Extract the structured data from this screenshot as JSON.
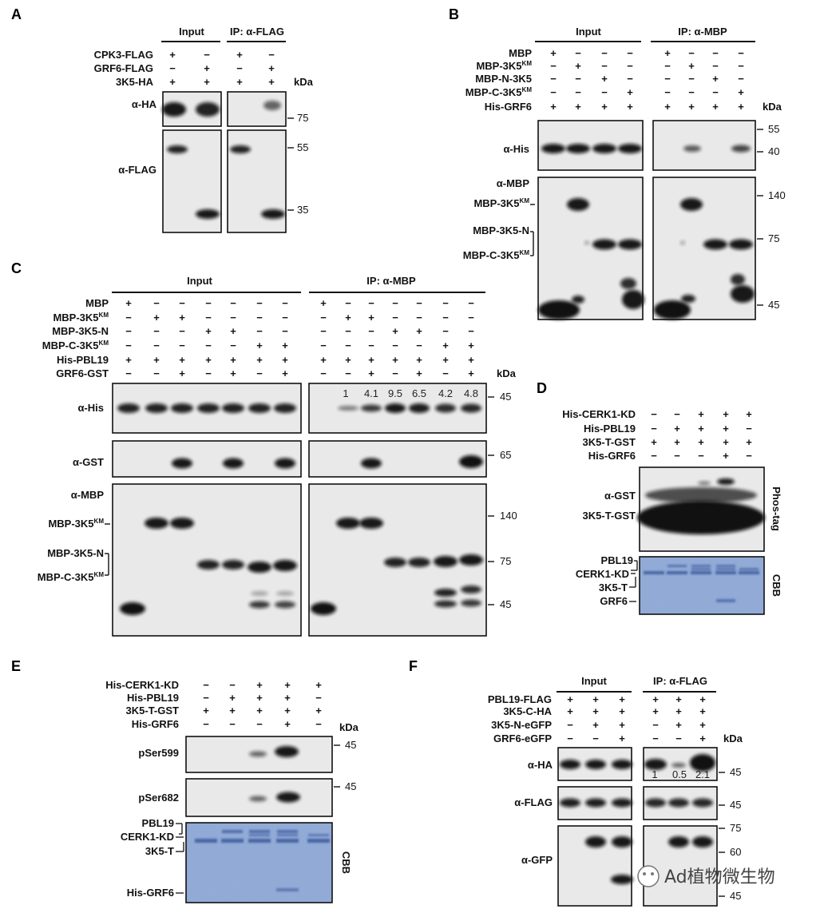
{
  "panels": {
    "A": {
      "letter": "A",
      "groups": [
        "Input",
        "IP: α-FLAG"
      ],
      "rows": [
        {
          "label": "CPK3-FLAG",
          "signs": [
            "+",
            "−",
            "+",
            "−"
          ]
        },
        {
          "label": "GRF6-FLAG",
          "signs": [
            "−",
            "+",
            "−",
            "+"
          ]
        },
        {
          "label": "3K5-HA",
          "signs": [
            "+",
            "+",
            "+",
            "+"
          ]
        }
      ],
      "kda": "kDa",
      "blots": [
        "α-HA",
        "α-FLAG"
      ],
      "markers": [
        "75",
        "55",
        "35"
      ]
    },
    "B": {
      "letter": "B",
      "groups": [
        "Input",
        "IP: α-MBP"
      ],
      "rows": [
        {
          "label": "MBP",
          "signs": [
            "+",
            "−",
            "−",
            "−",
            "+",
            "−",
            "−",
            "−"
          ]
        },
        {
          "label": "MBP-3K5KM",
          "signs": [
            "−",
            "+",
            "−",
            "−",
            "−",
            "+",
            "−",
            "−"
          ]
        },
        {
          "label": "MBP-N-3K5",
          "signs": [
            "−",
            "−",
            "+",
            "−",
            "−",
            "−",
            "+",
            "−"
          ]
        },
        {
          "label": "MBP-C-3K5KM",
          "signs": [
            "−",
            "−",
            "−",
            "+",
            "−",
            "−",
            "−",
            "+"
          ]
        },
        {
          "label": "His-GRF6",
          "signs": [
            "+",
            "+",
            "+",
            "+",
            "+",
            "+",
            "+",
            "+"
          ]
        }
      ],
      "kda": "kDa",
      "blots": [
        "α-His",
        "α-MBP"
      ],
      "band_labels": [
        "MBP-3K5KM",
        "MBP-3K5-N",
        "MBP-C-3K5KM"
      ],
      "markers": [
        "55",
        "40",
        "140",
        "75",
        "45"
      ]
    },
    "C": {
      "letter": "C",
      "groups": [
        "Input",
        "IP: α-MBP"
      ],
      "rows": [
        {
          "label": "MBP",
          "signs": [
            "+",
            "−",
            "−",
            "−",
            "−",
            "−",
            "−",
            "+",
            "−",
            "−",
            "−",
            "−",
            "−",
            "−"
          ]
        },
        {
          "label": "MBP-3K5KM",
          "signs": [
            "−",
            "+",
            "+",
            "−",
            "−",
            "−",
            "−",
            "−",
            "+",
            "+",
            "−",
            "−",
            "−",
            "−"
          ]
        },
        {
          "label": "MBP-3K5-N",
          "signs": [
            "−",
            "−",
            "−",
            "+",
            "+",
            "−",
            "−",
            "−",
            "−",
            "−",
            "+",
            "+",
            "−",
            "−"
          ]
        },
        {
          "label": "MBP-C-3K5KM",
          "signs": [
            "−",
            "−",
            "−",
            "−",
            "−",
            "+",
            "+",
            "−",
            "−",
            "−",
            "−",
            "−",
            "+",
            "+"
          ]
        },
        {
          "label": "His-PBL19",
          "signs": [
            "+",
            "+",
            "+",
            "+",
            "+",
            "+",
            "+",
            "+",
            "+",
            "+",
            "+",
            "+",
            "+",
            "+"
          ]
        },
        {
          "label": "GRF6-GST",
          "signs": [
            "−",
            "−",
            "+",
            "−",
            "+",
            "−",
            "+",
            "−",
            "−",
            "+",
            "−",
            "+",
            "−",
            "+"
          ]
        }
      ],
      "kda": "kDa",
      "blots": [
        "α-His",
        "α-GST",
        "α-MBP"
      ],
      "quant": [
        "1",
        "4.1",
        "9.5",
        "6.5",
        "4.2",
        "4.8"
      ],
      "band_labels": [
        "MBP-3K5KM",
        "MBP-3K5-N",
        "MBP-C-3K5KM"
      ],
      "markers": [
        "45",
        "65",
        "140",
        "75",
        "45"
      ]
    },
    "D": {
      "letter": "D",
      "rows": [
        {
          "label": "His-CERK1-KD",
          "signs": [
            "−",
            "−",
            "+",
            "+",
            "+"
          ]
        },
        {
          "label": "His-PBL19",
          "signs": [
            "−",
            "+",
            "+",
            "+",
            "−"
          ]
        },
        {
          "label": "3K5-T-GST",
          "signs": [
            "+",
            "+",
            "+",
            "+",
            "+"
          ]
        },
        {
          "label": "His-GRF6",
          "signs": [
            "−",
            "−",
            "−",
            "+",
            "−"
          ]
        }
      ],
      "blot_labels": [
        "α-GST",
        "3K5-T-GST"
      ],
      "side_labels": [
        "Phos-tag",
        "CBB"
      ],
      "cbb_labels": [
        "PBL19",
        "CERK1-KD",
        "3K5-T",
        "GRF6"
      ]
    },
    "E": {
      "letter": "E",
      "rows": [
        {
          "label": "His-CERK1-KD",
          "signs": [
            "−",
            "−",
            "+",
            "+",
            "+"
          ]
        },
        {
          "label": "His-PBL19",
          "signs": [
            "−",
            "+",
            "+",
            "+",
            "−"
          ]
        },
        {
          "label": "3K5-T-GST",
          "signs": [
            "+",
            "+",
            "+",
            "+",
            "+"
          ]
        },
        {
          "label": "His-GRF6",
          "signs": [
            "−",
            "−",
            "−",
            "+",
            "−"
          ]
        }
      ],
      "kda": "kDa",
      "blots": [
        "pSer599",
        "pSer682"
      ],
      "markers": [
        "45",
        "45"
      ],
      "side_label": "CBB",
      "cbb_labels": [
        "PBL19",
        "CERK1-KD",
        "3K5-T",
        "His-GRF6"
      ]
    },
    "F": {
      "letter": "F",
      "groups": [
        "Input",
        "IP: α-FLAG"
      ],
      "rows": [
        {
          "label": "PBL19-FLAG",
          "signs": [
            "+",
            "+",
            "+",
            "+",
            "+",
            "+"
          ]
        },
        {
          "label": "3K5-C-HA",
          "signs": [
            "+",
            "+",
            "+",
            "+",
            "+",
            "+"
          ]
        },
        {
          "label": "3K5-N-eGFP",
          "signs": [
            "−",
            "+",
            "+",
            "−",
            "+",
            "+"
          ]
        },
        {
          "label": "GRF6-eGFP",
          "signs": [
            "−",
            "−",
            "+",
            "−",
            "−",
            "+"
          ]
        }
      ],
      "kda": "kDa",
      "blots": [
        "α-HA",
        "α-FLAG",
        "α-GFP"
      ],
      "quant": [
        "1",
        "0.5",
        "2.1"
      ],
      "markers": [
        "45",
        "45",
        "75",
        "60",
        "45"
      ]
    }
  },
  "watermark": "Ad植物微生物",
  "colors": {
    "cbb": "#8fa9d6",
    "blot_bg": "#e9e9e9",
    "band": "#111111"
  }
}
